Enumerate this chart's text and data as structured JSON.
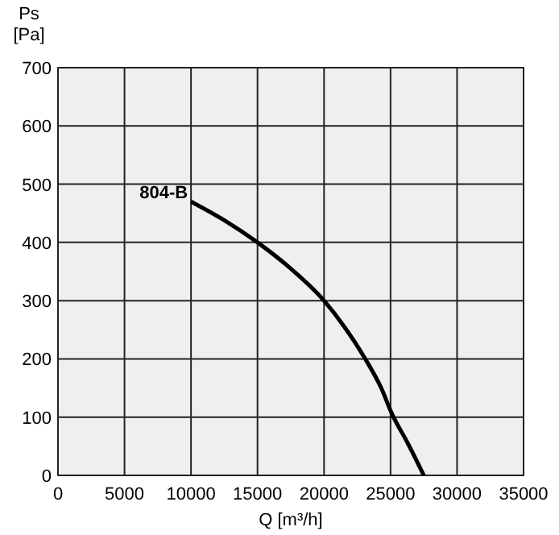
{
  "chart_data": {
    "type": "line",
    "xlabel": "Q [m³/h]",
    "ylabel": "Ps\n[Pa]",
    "xlim": [
      0,
      35000
    ],
    "ylim": [
      0,
      700
    ],
    "xticks": [
      0,
      5000,
      10000,
      15000,
      20000,
      25000,
      30000,
      35000
    ],
    "yticks": [
      0,
      100,
      200,
      300,
      400,
      500,
      600,
      700
    ],
    "grid": true,
    "series": [
      {
        "name": "804-B",
        "color": "#000000",
        "x": [
          10000,
          12500,
          15000,
          17500,
          20000,
          21500,
          23100,
          24300,
          25100,
          26300,
          27500
        ],
        "values": [
          470,
          438,
          400,
          355,
          300,
          256,
          200,
          150,
          106,
          55,
          0
        ]
      }
    ]
  }
}
